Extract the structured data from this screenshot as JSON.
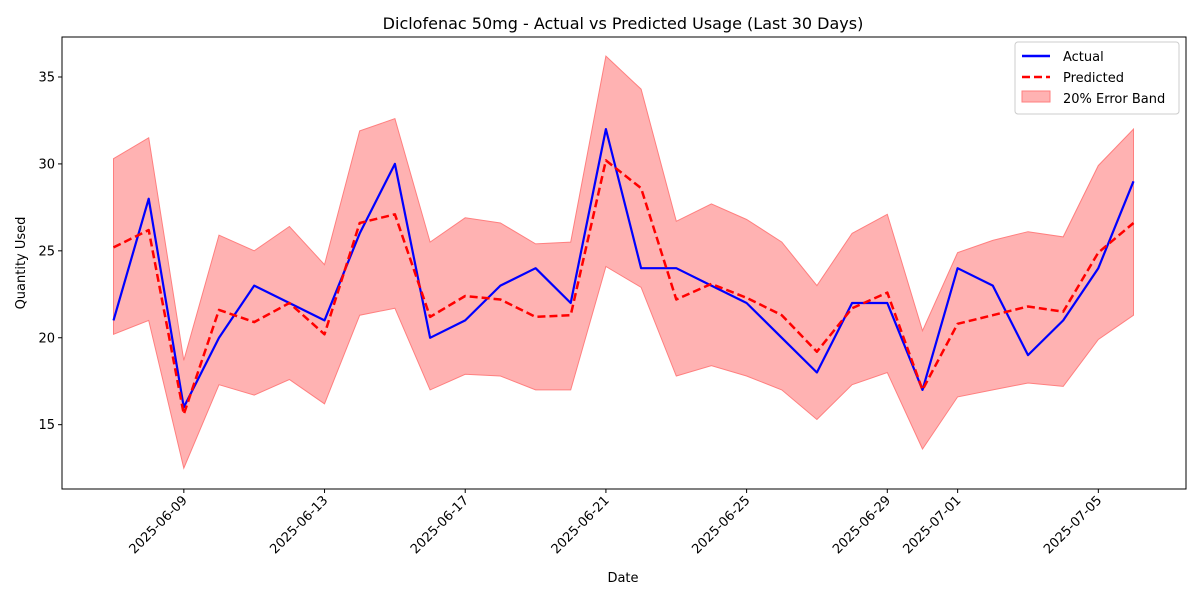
{
  "chart_data": {
    "type": "line",
    "title": "Diclofenac 50mg - Actual vs Predicted Usage (Last 30 Days)",
    "xlabel": "Date",
    "ylabel": "Quantity Used",
    "x": [
      "2025-06-07",
      "2025-06-08",
      "2025-06-09",
      "2025-06-10",
      "2025-06-11",
      "2025-06-12",
      "2025-06-13",
      "2025-06-14",
      "2025-06-15",
      "2025-06-16",
      "2025-06-17",
      "2025-06-18",
      "2025-06-19",
      "2025-06-20",
      "2025-06-21",
      "2025-06-22",
      "2025-06-23",
      "2025-06-24",
      "2025-06-25",
      "2025-06-26",
      "2025-06-27",
      "2025-06-28",
      "2025-06-29",
      "2025-06-30",
      "2025-07-01",
      "2025-07-02",
      "2025-07-03",
      "2025-07-04",
      "2025-07-05",
      "2025-07-06"
    ],
    "xticks": [
      "2025-06-09",
      "2025-06-13",
      "2025-06-17",
      "2025-06-21",
      "2025-06-25",
      "2025-06-29",
      "2025-07-01",
      "2025-07-05"
    ],
    "ylim": [
      11.3,
      37.3
    ],
    "yticks": [
      15,
      20,
      25,
      30,
      35
    ],
    "grid": false,
    "legend_position": "top-right",
    "series": [
      {
        "name": "Actual",
        "style": "solid",
        "color": "#0000ff",
        "values": [
          21,
          28,
          16,
          20,
          23,
          22,
          21,
          26,
          30,
          20,
          21,
          23,
          24,
          22,
          32,
          24,
          24,
          23,
          22,
          20,
          18,
          22,
          22,
          17,
          24,
          23,
          19,
          21,
          24,
          29
        ]
      },
      {
        "name": "Predicted",
        "style": "dashed",
        "color": "#ff0000",
        "values": [
          25.2,
          26.2,
          15.6,
          21.6,
          20.9,
          22.0,
          20.2,
          26.6,
          27.1,
          21.2,
          22.4,
          22.2,
          21.2,
          21.3,
          30.2,
          28.6,
          22.2,
          23.1,
          22.3,
          21.3,
          19.2,
          21.7,
          22.6,
          17.0,
          20.8,
          21.3,
          21.8,
          21.5,
          24.9,
          26.6
        ]
      },
      {
        "name": "20% Error Band",
        "style": "band",
        "color": "#ff7f7f",
        "lower": [
          20.2,
          21.0,
          12.5,
          17.3,
          16.7,
          17.6,
          16.2,
          21.3,
          21.7,
          17.0,
          17.9,
          17.8,
          17.0,
          17.0,
          24.1,
          22.9,
          17.8,
          18.4,
          17.8,
          17.0,
          15.3,
          17.3,
          18.0,
          13.6,
          16.6,
          17.0,
          17.4,
          17.2,
          19.9,
          21.3
        ],
        "upper": [
          30.3,
          31.5,
          18.7,
          25.9,
          25.0,
          26.4,
          24.2,
          31.9,
          32.6,
          25.5,
          26.9,
          26.6,
          25.4,
          25.5,
          36.2,
          34.3,
          26.7,
          27.7,
          26.8,
          25.5,
          23.0,
          26.0,
          27.1,
          20.4,
          24.9,
          25.6,
          26.1,
          25.8,
          29.9,
          32.0
        ]
      }
    ]
  }
}
